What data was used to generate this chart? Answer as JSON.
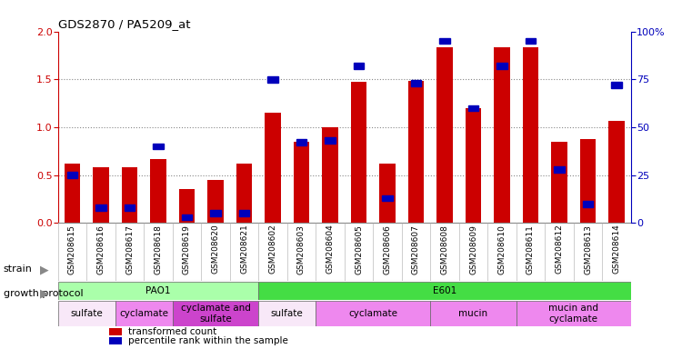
{
  "title": "GDS2870 / PA5209_at",
  "samples": [
    "GSM208615",
    "GSM208616",
    "GSM208617",
    "GSM208618",
    "GSM208619",
    "GSM208620",
    "GSM208621",
    "GSM208602",
    "GSM208603",
    "GSM208604",
    "GSM208605",
    "GSM208606",
    "GSM208607",
    "GSM208608",
    "GSM208609",
    "GSM208610",
    "GSM208611",
    "GSM208612",
    "GSM208613",
    "GSM208614"
  ],
  "transformed_count": [
    0.62,
    0.58,
    0.58,
    0.67,
    0.35,
    0.45,
    0.62,
    1.15,
    0.85,
    1.0,
    1.47,
    0.62,
    1.48,
    1.83,
    1.2,
    1.83,
    1.83,
    0.85,
    0.88,
    1.07
  ],
  "percentile_rank": [
    25,
    8,
    8,
    40,
    3,
    5,
    5,
    75,
    42,
    43,
    82,
    13,
    73,
    95,
    60,
    82,
    95,
    28,
    10,
    72
  ],
  "ylim_left": [
    0,
    2
  ],
  "ylim_right": [
    0,
    100
  ],
  "yticks_left": [
    0,
    0.5,
    1.0,
    1.5,
    2.0
  ],
  "yticks_right": [
    0,
    25,
    50,
    75,
    100
  ],
  "bar_color_red": "#cc0000",
  "bar_color_blue": "#0000bb",
  "strain_groups": [
    {
      "label": "PAO1",
      "start": 0,
      "end": 6,
      "color": "#aaffaa"
    },
    {
      "label": "E601",
      "start": 7,
      "end": 19,
      "color": "#44dd44"
    }
  ],
  "protocol_groups": [
    {
      "label": "sulfate",
      "start": 0,
      "end": 1,
      "color": "#f8e8f8"
    },
    {
      "label": "cyclamate",
      "start": 2,
      "end": 3,
      "color": "#ee88ee"
    },
    {
      "label": "cyclamate and\nsulfate",
      "start": 4,
      "end": 6,
      "color": "#cc44cc"
    },
    {
      "label": "sulfate",
      "start": 7,
      "end": 8,
      "color": "#f8e8f8"
    },
    {
      "label": "cyclamate",
      "start": 9,
      "end": 12,
      "color": "#ee88ee"
    },
    {
      "label": "mucin",
      "start": 13,
      "end": 15,
      "color": "#ee88ee"
    },
    {
      "label": "mucin and\ncyclamate",
      "start": 16,
      "end": 19,
      "color": "#ee88ee"
    }
  ],
  "legend_items": [
    {
      "label": "transformed count",
      "color": "#cc0000"
    },
    {
      "label": "percentile rank within the sample",
      "color": "#0000bb"
    }
  ],
  "label_strain": "strain",
  "label_protocol": "growth protocol",
  "background_color": "#ffffff"
}
